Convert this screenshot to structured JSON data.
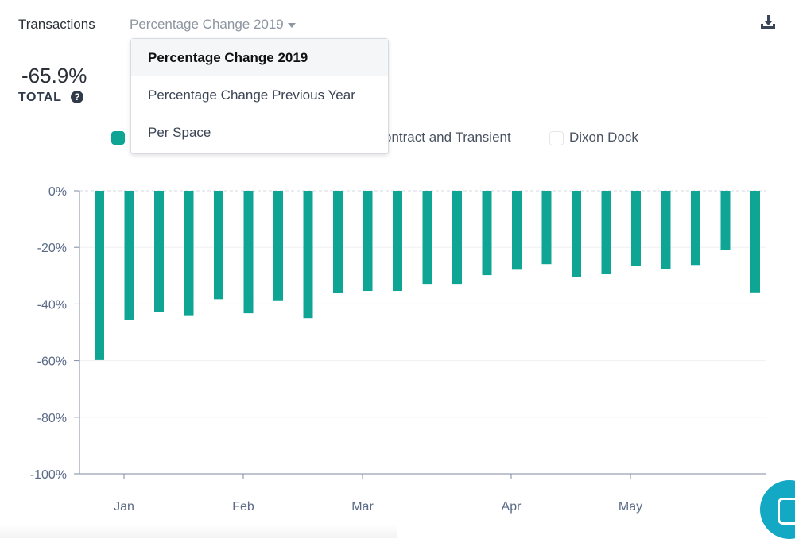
{
  "header": {
    "title": "Transactions",
    "metric_selector": "Percentage Change 2019"
  },
  "total": {
    "value": "-65.9%",
    "label": "TOTAL"
  },
  "dropdown": {
    "options": [
      "Percentage Change 2019",
      "Percentage Change Previous Year",
      "Per Space"
    ],
    "selected_index": 0
  },
  "legend": {
    "items": [
      {
        "label": "",
        "color": "#0fa594"
      },
      {
        "label": "ontract and Transient",
        "color": ""
      },
      {
        "label": "Dixon Dock",
        "color": "#ffffff"
      }
    ]
  },
  "chart_data": {
    "type": "bar",
    "ylim": [
      -100,
      0
    ],
    "yticks": [
      "0%",
      "-20%",
      "-40%",
      "-60%",
      "-80%",
      "-100%"
    ],
    "ytick_values": [
      0,
      -20,
      -40,
      -60,
      -80,
      -100
    ],
    "xticks": [
      "Jan",
      "Feb",
      "Mar",
      "Apr",
      "May"
    ],
    "grid": true,
    "series": [
      {
        "color": "#0fa594",
        "values": [
          -59.8,
          -45.5,
          -42.8,
          -44.0,
          -38.3,
          -43.3,
          -38.7,
          -45.0,
          -36.1,
          -35.4,
          -35.4,
          -32.9,
          -32.9,
          -29.8,
          -27.9,
          -25.9,
          -30.6,
          -29.5,
          -26.6,
          -27.7,
          -26.2,
          -20.9,
          -35.9
        ]
      }
    ]
  }
}
